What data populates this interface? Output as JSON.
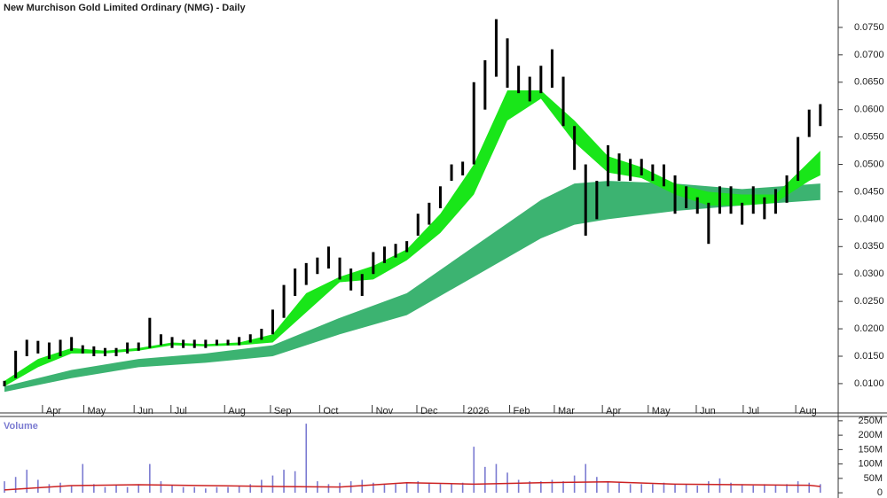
{
  "chart_data": [
    {
      "type": "ohlc",
      "title": "New Murchison Gold Limited Ordinary (NMG) - Daily",
      "color": "#000000",
      "x": [
        0,
        1,
        2,
        3,
        4,
        5,
        6,
        7,
        8,
        9,
        10,
        11,
        12,
        13,
        14,
        15,
        16,
        17,
        18,
        19,
        20,
        21,
        22,
        23,
        24,
        25,
        26,
        27,
        28,
        29,
        30,
        31,
        32,
        33,
        34,
        35,
        36,
        37,
        38,
        39,
        40,
        41,
        42,
        43,
        44,
        45,
        46,
        47,
        48,
        49,
        50,
        51,
        52,
        53,
        54,
        55,
        56,
        57,
        58,
        59,
        60,
        61,
        62,
        63,
        64,
        65,
        66,
        67,
        68,
        69,
        70,
        71,
        72,
        73
      ],
      "high": [
        0.0105,
        0.016,
        0.018,
        0.0178,
        0.0175,
        0.018,
        0.0185,
        0.017,
        0.0168,
        0.0165,
        0.0165,
        0.0175,
        0.0175,
        0.022,
        0.019,
        0.0185,
        0.018,
        0.018,
        0.018,
        0.018,
        0.018,
        0.0185,
        0.019,
        0.02,
        0.0235,
        0.028,
        0.031,
        0.032,
        0.033,
        0.035,
        0.033,
        0.031,
        0.03,
        0.034,
        0.035,
        0.0355,
        0.036,
        0.041,
        0.043,
        0.046,
        0.05,
        0.0505,
        0.065,
        0.069,
        0.0765,
        0.073,
        0.068,
        0.066,
        0.068,
        0.071,
        0.066,
        0.057,
        0.05,
        0.047,
        0.0535,
        0.052,
        0.051,
        0.051,
        0.05,
        0.05,
        0.048,
        0.046,
        0.044,
        0.043,
        0.046,
        0.046,
        0.043,
        0.046,
        0.044,
        0.0455,
        0.048,
        0.055,
        0.06,
        0.061
      ],
      "low": [
        0.0095,
        0.011,
        0.015,
        0.0155,
        0.0145,
        0.015,
        0.016,
        0.0155,
        0.015,
        0.015,
        0.015,
        0.0155,
        0.016,
        0.0165,
        0.017,
        0.0165,
        0.0165,
        0.0165,
        0.0165,
        0.017,
        0.017,
        0.017,
        0.0175,
        0.018,
        0.019,
        0.022,
        0.026,
        0.028,
        0.03,
        0.031,
        0.029,
        0.027,
        0.026,
        0.03,
        0.032,
        0.033,
        0.034,
        0.037,
        0.039,
        0.042,
        0.047,
        0.048,
        0.05,
        0.06,
        0.066,
        0.064,
        0.063,
        0.0615,
        0.063,
        0.064,
        0.057,
        0.049,
        0.037,
        0.04,
        0.046,
        0.047,
        0.047,
        0.048,
        0.047,
        0.046,
        0.041,
        0.042,
        0.041,
        0.0355,
        0.041,
        0.041,
        0.039,
        0.041,
        0.04,
        0.041,
        0.043,
        0.047,
        0.055,
        0.057
      ],
      "fast_band": {
        "color": "#19e619",
        "x": [
          0,
          3,
          6,
          9,
          12,
          15,
          18,
          21,
          24,
          27,
          30,
          33,
          36,
          39,
          42,
          45,
          48,
          51,
          54,
          57,
          60,
          63,
          66,
          69,
          72,
          73
        ],
        "upper": [
          0.0105,
          0.0145,
          0.0165,
          0.016,
          0.0165,
          0.0175,
          0.0172,
          0.0175,
          0.019,
          0.0265,
          0.0295,
          0.0315,
          0.0345,
          0.041,
          0.05,
          0.0635,
          0.0635,
          0.058,
          0.0515,
          0.0495,
          0.0465,
          0.045,
          0.0445,
          0.0445,
          0.0505,
          0.0525
        ],
        "lower": [
          0.0095,
          0.013,
          0.0155,
          0.0155,
          0.016,
          0.017,
          0.0168,
          0.017,
          0.0175,
          0.023,
          0.0285,
          0.029,
          0.0325,
          0.0375,
          0.0445,
          0.058,
          0.062,
          0.054,
          0.0485,
          0.0475,
          0.0445,
          0.0425,
          0.0425,
          0.043,
          0.047,
          0.048
        ]
      },
      "slow_band": {
        "color": "#3cb371",
        "x": [
          0,
          6,
          12,
          18,
          24,
          30,
          36,
          42,
          48,
          51,
          54,
          60,
          66,
          73
        ],
        "upper": [
          0.0095,
          0.0125,
          0.0145,
          0.0155,
          0.017,
          0.022,
          0.0265,
          0.035,
          0.0435,
          0.0465,
          0.047,
          0.0465,
          0.0455,
          0.0465
        ],
        "lower": [
          0.0085,
          0.011,
          0.013,
          0.0138,
          0.015,
          0.019,
          0.0225,
          0.0295,
          0.0365,
          0.039,
          0.04,
          0.0415,
          0.0425,
          0.0435
        ]
      },
      "xlim": [
        -0.4,
        74.6
      ],
      "xticks": [
        {
          "value": 3.4,
          "label": "Apr"
        },
        {
          "value": 7.1,
          "label": "May"
        },
        {
          "value": 11.6,
          "label": "Jun"
        },
        {
          "value": 14.9,
          "label": "Jul"
        },
        {
          "value": 19.7,
          "label": "Aug"
        },
        {
          "value": 23.8,
          "label": "Sep"
        },
        {
          "value": 28.2,
          "label": "Oct"
        },
        {
          "value": 32.9,
          "label": "Nov"
        },
        {
          "value": 36.9,
          "label": "Dec"
        },
        {
          "value": 41.1,
          "label": "2026"
        },
        {
          "value": 45.2,
          "label": "Feb"
        },
        {
          "value": 49.2,
          "label": "Mar"
        },
        {
          "value": 53.5,
          "label": "Apr"
        },
        {
          "value": 57.6,
          "label": "May"
        },
        {
          "value": 61.9,
          "label": "Jun"
        },
        {
          "value": 66.1,
          "label": "Jul"
        },
        {
          "value": 70.8,
          "label": "Aug"
        }
      ],
      "ylim": [
        0.00465,
        0.08
      ],
      "yticks": [
        {
          "value": 0.01,
          "label": "0.0100"
        },
        {
          "value": 0.015,
          "label": "0.0150"
        },
        {
          "value": 0.02,
          "label": "0.0200"
        },
        {
          "value": 0.025,
          "label": "0.0250"
        },
        {
          "value": 0.03,
          "label": "0.0300"
        },
        {
          "value": 0.035,
          "label": "0.0350"
        },
        {
          "value": 0.04,
          "label": "0.0400"
        },
        {
          "value": 0.045,
          "label": "0.0450"
        },
        {
          "value": 0.05,
          "label": "0.0500"
        },
        {
          "value": 0.055,
          "label": "0.0550"
        },
        {
          "value": 0.06,
          "label": "0.0600"
        },
        {
          "value": 0.065,
          "label": "0.0650"
        },
        {
          "value": 0.07,
          "label": "0.0700"
        },
        {
          "value": 0.075,
          "label": "0.0750"
        }
      ]
    },
    {
      "type": "bar",
      "title": "Volume",
      "color": "#7b7bd1",
      "x": [
        0,
        1,
        2,
        3,
        4,
        5,
        6,
        7,
        8,
        9,
        10,
        11,
        12,
        13,
        14,
        15,
        16,
        17,
        18,
        19,
        20,
        21,
        22,
        23,
        24,
        25,
        26,
        27,
        28,
        29,
        30,
        31,
        32,
        33,
        34,
        35,
        36,
        37,
        38,
        39,
        40,
        41,
        42,
        43,
        44,
        45,
        46,
        47,
        48,
        49,
        50,
        51,
        52,
        53,
        54,
        55,
        56,
        57,
        58,
        59,
        60,
        61,
        62,
        63,
        64,
        65,
        66,
        67,
        68,
        69,
        70,
        71,
        72,
        73
      ],
      "values": [
        40000000,
        55000000,
        80000000,
        45000000,
        30000000,
        35000000,
        25000000,
        100000000,
        30000000,
        20000000,
        25000000,
        20000000,
        30000000,
        100000000,
        40000000,
        25000000,
        20000000,
        20000000,
        15000000,
        20000000,
        20000000,
        25000000,
        30000000,
        45000000,
        60000000,
        80000000,
        75000000,
        240000000,
        40000000,
        30000000,
        35000000,
        40000000,
        45000000,
        35000000,
        30000000,
        30000000,
        35000000,
        40000000,
        35000000,
        30000000,
        30000000,
        35000000,
        160000000,
        90000000,
        100000000,
        70000000,
        45000000,
        40000000,
        40000000,
        45000000,
        40000000,
        60000000,
        100000000,
        55000000,
        40000000,
        35000000,
        30000000,
        30000000,
        30000000,
        35000000,
        30000000,
        30000000,
        25000000,
        40000000,
        50000000,
        35000000,
        30000000,
        25000000,
        30000000,
        25000000,
        30000000,
        40000000,
        35000000,
        30000000
      ],
      "ma": {
        "color": "#cc2222",
        "x": [
          0,
          6,
          12,
          18,
          24,
          30,
          36,
          42,
          48,
          54,
          60,
          66,
          72,
          73
        ],
        "values": [
          10000000,
          25000000,
          28000000,
          25000000,
          22000000,
          20000000,
          35000000,
          30000000,
          35000000,
          38000000,
          30000000,
          28000000,
          26000000,
          22000000
        ]
      },
      "xlim": [
        -0.4,
        74.6
      ],
      "ylim": [
        -12000000,
        265000000
      ],
      "yticks": [
        0,
        {
          "value": 50000000,
          "label": "50M"
        },
        {
          "value": 100000000,
          "label": "100M"
        },
        {
          "value": 150000000,
          "label": "150M"
        },
        {
          "value": 200000000,
          "label": "200M"
        },
        {
          "value": 250000000,
          "label": "250M"
        }
      ]
    }
  ]
}
